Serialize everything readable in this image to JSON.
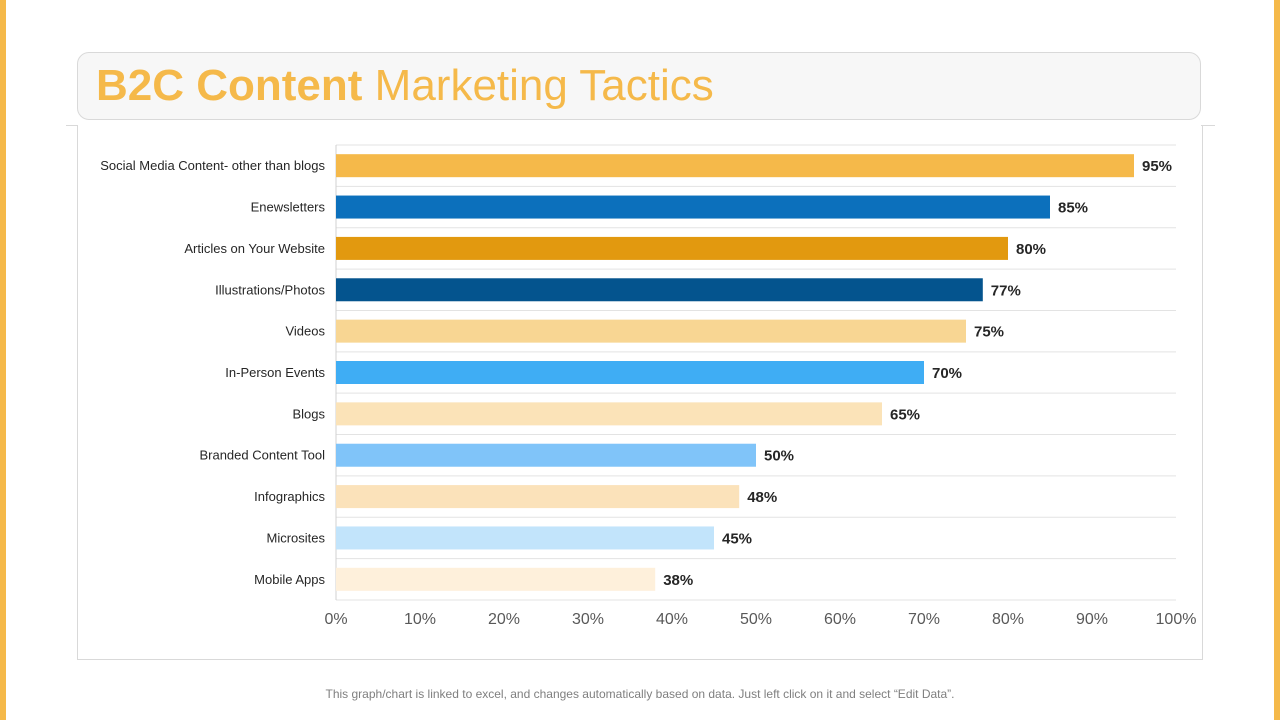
{
  "title": {
    "bold": "B2C Content",
    "regular": "Marketing Tactics"
  },
  "footer": "This graph/chart is linked to excel, and changes automatically based on data. Just left click on it and select “Edit Data”.",
  "chart_data": {
    "type": "bar",
    "orientation": "horizontal",
    "categories": [
      "Social Media Content- other than blogs",
      "Enewsletters",
      "Articles on Your Website",
      "Illustrations/Photos",
      "Videos",
      "In-Person Events",
      "Blogs",
      "Branded Content Tool",
      "Infographics",
      "Microsites",
      "Mobile Apps"
    ],
    "values": [
      95,
      85,
      80,
      77,
      75,
      70,
      65,
      50,
      48,
      45,
      38
    ],
    "data_labels": [
      "95%",
      "85%",
      "80%",
      "77%",
      "75%",
      "70%",
      "65%",
      "50%",
      "48%",
      "45%",
      "38%"
    ],
    "colors": [
      "#F5B94A",
      "#0C70BC",
      "#E2990F",
      "#04548E",
      "#F8D693",
      "#3FADF4",
      "#FBE3B8",
      "#80C4F9",
      "#FBE2BA",
      "#C2E4FB",
      "#FEF0DB"
    ],
    "xticks": [
      "0%",
      "10%",
      "20%",
      "30%",
      "40%",
      "50%",
      "60%",
      "70%",
      "80%",
      "90%",
      "100%"
    ],
    "xlim": [
      0,
      100
    ],
    "grid": "horizontal",
    "legend": "none"
  }
}
